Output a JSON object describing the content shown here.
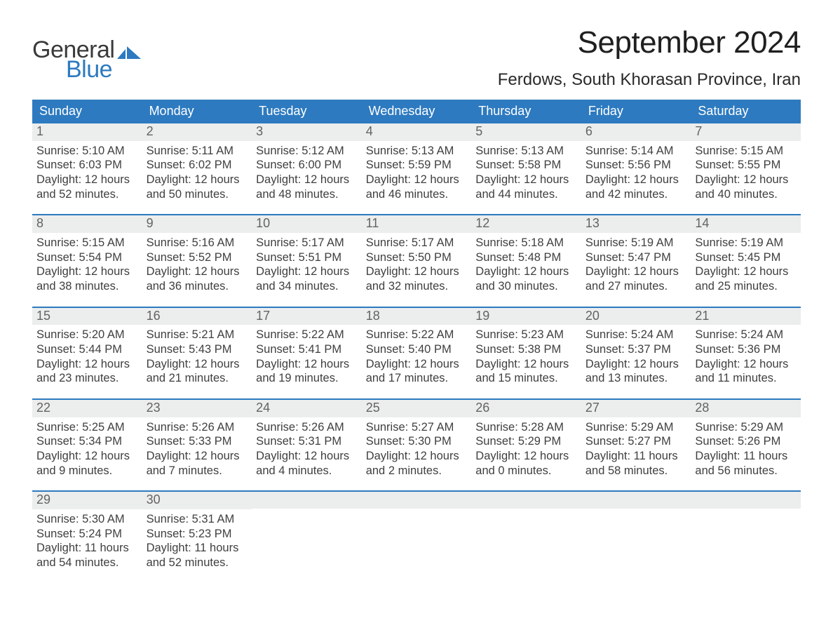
{
  "brand": {
    "word1": "General",
    "word2": "Blue",
    "color_primary": "#2d7ac0",
    "color_text": "#3a3a3a"
  },
  "title": "September 2024",
  "location": "Ferdows, South Khorasan Province, Iran",
  "colors": {
    "header_bg": "#2d7ac0",
    "row_border": "#2d7ac0",
    "day_num_bg": "#eceded",
    "page_bg": "#ffffff",
    "text_dark": "#2b2b2b",
    "text_mid": "#3f3f3f",
    "text_light": "#636363",
    "dow_text": "#ffffff"
  },
  "typography": {
    "title_fontsize_pt": 33,
    "location_fontsize_pt": 18,
    "dow_fontsize_pt": 14,
    "daynum_fontsize_pt": 14,
    "body_fontsize_pt": 12,
    "font_family": "Segoe UI / Helvetica Neue"
  },
  "days_of_week": [
    "Sunday",
    "Monday",
    "Tuesday",
    "Wednesday",
    "Thursday",
    "Friday",
    "Saturday"
  ],
  "labels": {
    "sunrise_prefix": "Sunrise: ",
    "sunset_prefix": "Sunset: ",
    "daylight_prefix": "Daylight: "
  },
  "weeks": [
    [
      {
        "n": "1",
        "sunrise": "5:10 AM",
        "sunset": "6:03 PM",
        "daylight": "12 hours and 52 minutes."
      },
      {
        "n": "2",
        "sunrise": "5:11 AM",
        "sunset": "6:02 PM",
        "daylight": "12 hours and 50 minutes."
      },
      {
        "n": "3",
        "sunrise": "5:12 AM",
        "sunset": "6:00 PM",
        "daylight": "12 hours and 48 minutes."
      },
      {
        "n": "4",
        "sunrise": "5:13 AM",
        "sunset": "5:59 PM",
        "daylight": "12 hours and 46 minutes."
      },
      {
        "n": "5",
        "sunrise": "5:13 AM",
        "sunset": "5:58 PM",
        "daylight": "12 hours and 44 minutes."
      },
      {
        "n": "6",
        "sunrise": "5:14 AM",
        "sunset": "5:56 PM",
        "daylight": "12 hours and 42 minutes."
      },
      {
        "n": "7",
        "sunrise": "5:15 AM",
        "sunset": "5:55 PM",
        "daylight": "12 hours and 40 minutes."
      }
    ],
    [
      {
        "n": "8",
        "sunrise": "5:15 AM",
        "sunset": "5:54 PM",
        "daylight": "12 hours and 38 minutes."
      },
      {
        "n": "9",
        "sunrise": "5:16 AM",
        "sunset": "5:52 PM",
        "daylight": "12 hours and 36 minutes."
      },
      {
        "n": "10",
        "sunrise": "5:17 AM",
        "sunset": "5:51 PM",
        "daylight": "12 hours and 34 minutes."
      },
      {
        "n": "11",
        "sunrise": "5:17 AM",
        "sunset": "5:50 PM",
        "daylight": "12 hours and 32 minutes."
      },
      {
        "n": "12",
        "sunrise": "5:18 AM",
        "sunset": "5:48 PM",
        "daylight": "12 hours and 30 minutes."
      },
      {
        "n": "13",
        "sunrise": "5:19 AM",
        "sunset": "5:47 PM",
        "daylight": "12 hours and 27 minutes."
      },
      {
        "n": "14",
        "sunrise": "5:19 AM",
        "sunset": "5:45 PM",
        "daylight": "12 hours and 25 minutes."
      }
    ],
    [
      {
        "n": "15",
        "sunrise": "5:20 AM",
        "sunset": "5:44 PM",
        "daylight": "12 hours and 23 minutes."
      },
      {
        "n": "16",
        "sunrise": "5:21 AM",
        "sunset": "5:43 PM",
        "daylight": "12 hours and 21 minutes."
      },
      {
        "n": "17",
        "sunrise": "5:22 AM",
        "sunset": "5:41 PM",
        "daylight": "12 hours and 19 minutes."
      },
      {
        "n": "18",
        "sunrise": "5:22 AM",
        "sunset": "5:40 PM",
        "daylight": "12 hours and 17 minutes."
      },
      {
        "n": "19",
        "sunrise": "5:23 AM",
        "sunset": "5:38 PM",
        "daylight": "12 hours and 15 minutes."
      },
      {
        "n": "20",
        "sunrise": "5:24 AM",
        "sunset": "5:37 PM",
        "daylight": "12 hours and 13 minutes."
      },
      {
        "n": "21",
        "sunrise": "5:24 AM",
        "sunset": "5:36 PM",
        "daylight": "12 hours and 11 minutes."
      }
    ],
    [
      {
        "n": "22",
        "sunrise": "5:25 AM",
        "sunset": "5:34 PM",
        "daylight": "12 hours and 9 minutes."
      },
      {
        "n": "23",
        "sunrise": "5:26 AM",
        "sunset": "5:33 PM",
        "daylight": "12 hours and 7 minutes."
      },
      {
        "n": "24",
        "sunrise": "5:26 AM",
        "sunset": "5:31 PM",
        "daylight": "12 hours and 4 minutes."
      },
      {
        "n": "25",
        "sunrise": "5:27 AM",
        "sunset": "5:30 PM",
        "daylight": "12 hours and 2 minutes."
      },
      {
        "n": "26",
        "sunrise": "5:28 AM",
        "sunset": "5:29 PM",
        "daylight": "12 hours and 0 minutes."
      },
      {
        "n": "27",
        "sunrise": "5:29 AM",
        "sunset": "5:27 PM",
        "daylight": "11 hours and 58 minutes."
      },
      {
        "n": "28",
        "sunrise": "5:29 AM",
        "sunset": "5:26 PM",
        "daylight": "11 hours and 56 minutes."
      }
    ],
    [
      {
        "n": "29",
        "sunrise": "5:30 AM",
        "sunset": "5:24 PM",
        "daylight": "11 hours and 54 minutes."
      },
      {
        "n": "30",
        "sunrise": "5:31 AM",
        "sunset": "5:23 PM",
        "daylight": "11 hours and 52 minutes."
      },
      null,
      null,
      null,
      null,
      null
    ]
  ]
}
